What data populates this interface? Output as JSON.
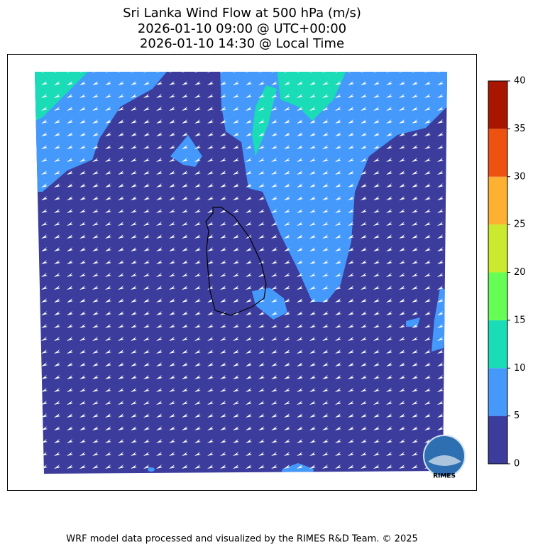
{
  "title": [
    "Sri Lanka Wind Flow at 500 hPa (m/s)",
    "2026-01-10 09:00 @ UTC+00:00",
    "2026-01-10 14:30 @ Local Time"
  ],
  "colorbar": {
    "lim": [
      0,
      40
    ],
    "ticks": [
      0,
      5,
      10,
      15,
      20,
      25,
      30,
      35,
      40
    ],
    "colors": [
      "#3c3c9c",
      "#4499fb",
      "#1adcb6",
      "#66fe55",
      "#cbe92e",
      "#feb032",
      "#ed5211",
      "#a81600"
    ]
  },
  "logo": "RIMES",
  "footer": "WRF model data processed and visualized by the RIMES R&D Team. © 2025"
}
